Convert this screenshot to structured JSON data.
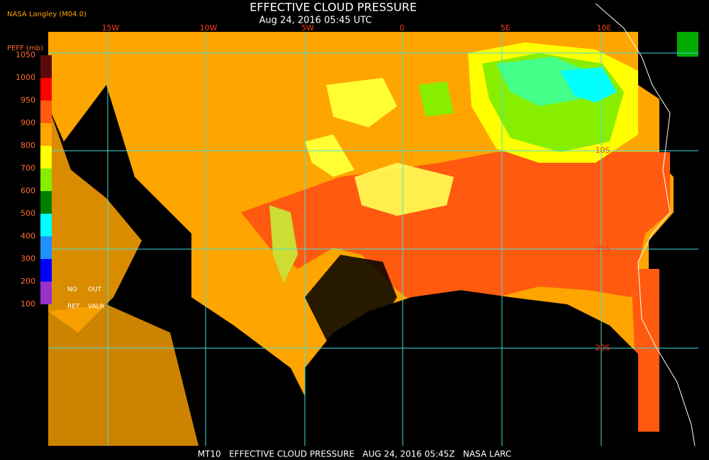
{
  "header": {
    "source": "NASA Langley (M04.0)",
    "title": "EFFECTIVE CLOUD PRESSURE",
    "subtitle": "Aug 24, 2016 05:45 UTC"
  },
  "legend": {
    "title": "PEFF (mb)",
    "ticks": [
      1050,
      1000,
      950,
      900,
      800,
      700,
      600,
      500,
      400,
      300,
      200,
      100
    ],
    "colors": [
      "#5a0a0a",
      "#ff0000",
      "#ff5a10",
      "#ffa500",
      "#ffff00",
      "#88ee00",
      "#008000",
      "#00ffff",
      "#1e90ff",
      "#0000ff",
      "#9932cc"
    ],
    "no_data": [
      "NO",
      "OUT",
      "RET",
      "VALR"
    ]
  },
  "map": {
    "lon_labels": [
      "15W",
      "10W",
      "5W",
      "0",
      "5E",
      "10E"
    ],
    "lat_labels": [
      "10S",
      "15S",
      "20S"
    ]
  },
  "footer": "MT10   EFFECTIVE CLOUD PRESSURE   AUG 24, 2016 05:45Z   NASA LARC"
}
